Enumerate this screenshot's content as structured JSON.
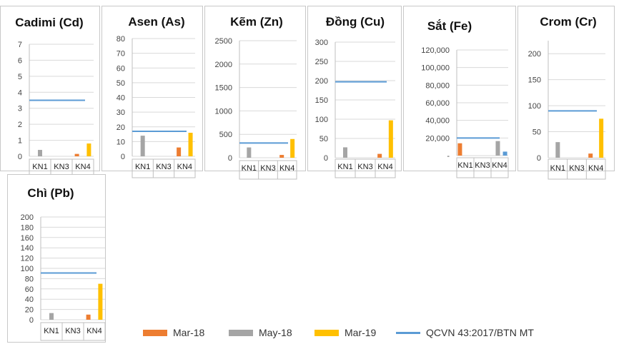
{
  "colors": {
    "mar18": "#ED7D31",
    "may18": "#A5A5A5",
    "mar19": "#FFC000",
    "limit": "#5B9BD5",
    "grid": "#D9D9D9",
    "axis": "#BFBFBF"
  },
  "legend": [
    {
      "label": "Mar-18",
      "color": "#ED7D31",
      "kind": "bar"
    },
    {
      "label": "May-18",
      "color": "#A5A5A5",
      "kind": "bar"
    },
    {
      "label": "Mar-19",
      "color": "#FFC000",
      "kind": "bar"
    },
    {
      "label": "QCVN 43:2017/BTN MT",
      "color": "#5B9BD5",
      "kind": "line"
    }
  ],
  "chart_data": [
    {
      "type": "bar",
      "title": "Cadimi (Cd)",
      "categories": [
        "KN1",
        "KN3",
        "KN4"
      ],
      "ylim": [
        0,
        7
      ],
      "yticks": [
        "0",
        "1",
        "2",
        "3",
        "4",
        "5",
        "6",
        "7"
      ],
      "ytick_values": [
        0,
        1,
        2,
        3,
        4,
        5,
        6,
        7
      ],
      "series": [
        {
          "name": "Mar-18",
          "values": [
            0,
            0,
            0.15
          ]
        },
        {
          "name": "May-18",
          "values": [
            0.4,
            0,
            0
          ]
        },
        {
          "name": "Mar-19",
          "values": [
            0,
            0,
            0.8
          ]
        }
      ],
      "limit": {
        "name": "QCVN 43:2017/BTN MT",
        "value": 3.5
      },
      "grid": true
    },
    {
      "type": "bar",
      "title": "Asen (As)",
      "categories": [
        "KN1",
        "KN3",
        "KN4"
      ],
      "ylim": [
        0,
        80
      ],
      "yticks": [
        "0",
        "10",
        "20",
        "30",
        "40",
        "50",
        "60",
        "70",
        "80"
      ],
      "ytick_values": [
        0,
        10,
        20,
        30,
        40,
        50,
        60,
        70,
        80
      ],
      "series": [
        {
          "name": "Mar-18",
          "values": [
            0,
            0,
            6
          ]
        },
        {
          "name": "May-18",
          "values": [
            14,
            0,
            0
          ]
        },
        {
          "name": "Mar-19",
          "values": [
            0,
            0,
            16
          ]
        }
      ],
      "limit": {
        "name": "QCVN 43:2017/BTN MT",
        "value": 17
      },
      "grid": true
    },
    {
      "type": "bar",
      "title": "Kẽm (Zn)",
      "categories": [
        "KN1",
        "KN3",
        "KN4"
      ],
      "ylim": [
        0,
        2500
      ],
      "yticks": [
        "0",
        "500",
        "1000",
        "1500",
        "2000",
        "2500"
      ],
      "ytick_values": [
        0,
        500,
        1000,
        1500,
        2000,
        2500
      ],
      "series": [
        {
          "name": "Mar-18",
          "values": [
            0,
            0,
            60
          ]
        },
        {
          "name": "May-18",
          "values": [
            220,
            0,
            0
          ]
        },
        {
          "name": "Mar-19",
          "values": [
            0,
            0,
            400
          ]
        }
      ],
      "limit": {
        "name": "QCVN 43:2017/BTN MT",
        "value": 315
      },
      "grid": true
    },
    {
      "type": "bar",
      "title": "Đồng (Cu)",
      "categories": [
        "KN1",
        "KN3",
        "KN4"
      ],
      "ylim": [
        0,
        300
      ],
      "yticks": [
        "0",
        "50",
        "100",
        "150",
        "200",
        "250",
        "300"
      ],
      "ytick_values": [
        0,
        50,
        100,
        150,
        200,
        250,
        300
      ],
      "series": [
        {
          "name": "Mar-18",
          "values": [
            0,
            0,
            10
          ]
        },
        {
          "name": "May-18",
          "values": [
            27,
            0,
            0
          ]
        },
        {
          "name": "Mar-19",
          "values": [
            0,
            0,
            97
          ]
        }
      ],
      "limit": {
        "name": "QCVN 43:2017/BTN MT",
        "value": 197
      },
      "grid": true
    },
    {
      "type": "bar",
      "title": "Sắt (Fe)",
      "categories": [
        "KN1",
        "KN3",
        "KN4"
      ],
      "ylim": [
        0,
        120000
      ],
      "yticks": [
        "-",
        "20,000",
        "40,000",
        "60,000",
        "80,000",
        "100,000",
        "120,000"
      ],
      "ytick_values": [
        0,
        20000,
        40000,
        60000,
        80000,
        100000,
        120000
      ],
      "series": [
        {
          "name": "Mar-18",
          "values": [
            14000,
            0,
            0
          ]
        },
        {
          "name": "May-18",
          "values": [
            0,
            0,
            16500
          ]
        },
        {
          "name": "Mar-19",
          "values": [
            0,
            0,
            0
          ]
        },
        {
          "name": "QCVN 43:2017/BTN MT",
          "values": [
            0,
            0,
            4500
          ]
        }
      ],
      "limit": {
        "name": "QCVN 43:2017/BTN MT",
        "value": 20000
      },
      "grid": true
    },
    {
      "type": "bar",
      "title": "Crom (Cr)",
      "categories": [
        "KN1",
        "KN3",
        "KN4"
      ],
      "ylim": [
        0,
        225
      ],
      "yticks": [
        "0",
        "50",
        "100",
        "150",
        "200"
      ],
      "ytick_values": [
        0,
        50,
        100,
        150,
        200
      ],
      "series": [
        {
          "name": "Mar-18",
          "values": [
            0,
            0,
            8
          ]
        },
        {
          "name": "May-18",
          "values": [
            30,
            0,
            0
          ]
        },
        {
          "name": "Mar-19",
          "values": [
            0,
            0,
            75
          ]
        }
      ],
      "limit": {
        "name": "QCVN 43:2017/BTN MT",
        "value": 90
      },
      "grid": true
    },
    {
      "type": "bar",
      "title": "Chì (Pb)",
      "categories": [
        "KN1",
        "KN3",
        "KN4"
      ],
      "ylim": [
        0,
        200
      ],
      "yticks": [
        "0",
        "20",
        "40",
        "60",
        "80",
        "100",
        "120",
        "140",
        "160",
        "180",
        "200"
      ],
      "ytick_values": [
        0,
        20,
        40,
        60,
        80,
        100,
        120,
        140,
        160,
        180,
        200
      ],
      "series": [
        {
          "name": "Mar-18",
          "values": [
            0,
            0,
            10
          ]
        },
        {
          "name": "May-18",
          "values": [
            13,
            0,
            0
          ]
        },
        {
          "name": "Mar-19",
          "values": [
            0,
            0,
            70
          ]
        }
      ],
      "limit": {
        "name": "QCVN 43:2017/BTN MT",
        "value": 91
      },
      "grid": true
    }
  ]
}
